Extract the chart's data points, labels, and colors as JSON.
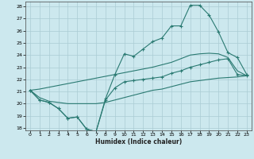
{
  "xlabel": "Humidex (Indice chaleur)",
  "xlim": [
    -0.5,
    23.5
  ],
  "ylim": [
    17.8,
    28.4
  ],
  "xticks": [
    0,
    1,
    2,
    3,
    4,
    5,
    6,
    7,
    8,
    9,
    10,
    11,
    12,
    13,
    14,
    15,
    16,
    17,
    18,
    19,
    20,
    21,
    22,
    23
  ],
  "yticks": [
    18,
    19,
    20,
    21,
    22,
    23,
    24,
    25,
    26,
    27,
    28
  ],
  "bg_color": "#cce8ee",
  "grid_color": "#aaccd4",
  "line_color": "#2a7a72",
  "line1_x": [
    0,
    1,
    2,
    3,
    4,
    5,
    6,
    7,
    8,
    9,
    10,
    11,
    12,
    13,
    14,
    15,
    16,
    17,
    18,
    19,
    20,
    21,
    22,
    23
  ],
  "line1_y": [
    21.1,
    20.3,
    20.1,
    19.6,
    18.8,
    18.9,
    17.9,
    17.7,
    20.4,
    22.4,
    24.1,
    23.9,
    24.5,
    25.1,
    25.4,
    26.4,
    26.4,
    28.1,
    28.1,
    27.3,
    25.9,
    24.2,
    23.8,
    22.4
  ],
  "line2_x": [
    0,
    1,
    2,
    3,
    4,
    5,
    6,
    7,
    8,
    9,
    10,
    11,
    12,
    13,
    14,
    15,
    16,
    17,
    18,
    19,
    20,
    21,
    22,
    23
  ],
  "line2_y": [
    21.1,
    20.3,
    20.1,
    19.6,
    18.8,
    18.9,
    17.9,
    17.7,
    20.3,
    21.3,
    21.8,
    21.9,
    22.0,
    22.1,
    22.2,
    22.5,
    22.7,
    23.0,
    23.2,
    23.4,
    23.6,
    23.7,
    22.4,
    22.3
  ],
  "line3_x": [
    0,
    1,
    2,
    3,
    4,
    5,
    6,
    7,
    8,
    9,
    10,
    11,
    12,
    13,
    14,
    15,
    16,
    17,
    18,
    19,
    20,
    21,
    22,
    23
  ],
  "line3_y": [
    21.1,
    20.5,
    20.2,
    20.1,
    20.0,
    20.0,
    20.0,
    20.0,
    20.1,
    20.3,
    20.5,
    20.7,
    20.9,
    21.1,
    21.2,
    21.4,
    21.6,
    21.8,
    21.9,
    22.0,
    22.1,
    22.15,
    22.2,
    22.3
  ],
  "line4_x": [
    0,
    1,
    2,
    3,
    4,
    5,
    6,
    7,
    8,
    9,
    10,
    11,
    12,
    13,
    14,
    15,
    16,
    17,
    18,
    19,
    20,
    21,
    22,
    23
  ],
  "line4_y": [
    21.1,
    21.2,
    21.35,
    21.5,
    21.65,
    21.8,
    21.95,
    22.1,
    22.25,
    22.4,
    22.55,
    22.7,
    22.85,
    23.0,
    23.2,
    23.4,
    23.7,
    24.0,
    24.1,
    24.15,
    24.1,
    23.8,
    22.7,
    22.3
  ]
}
